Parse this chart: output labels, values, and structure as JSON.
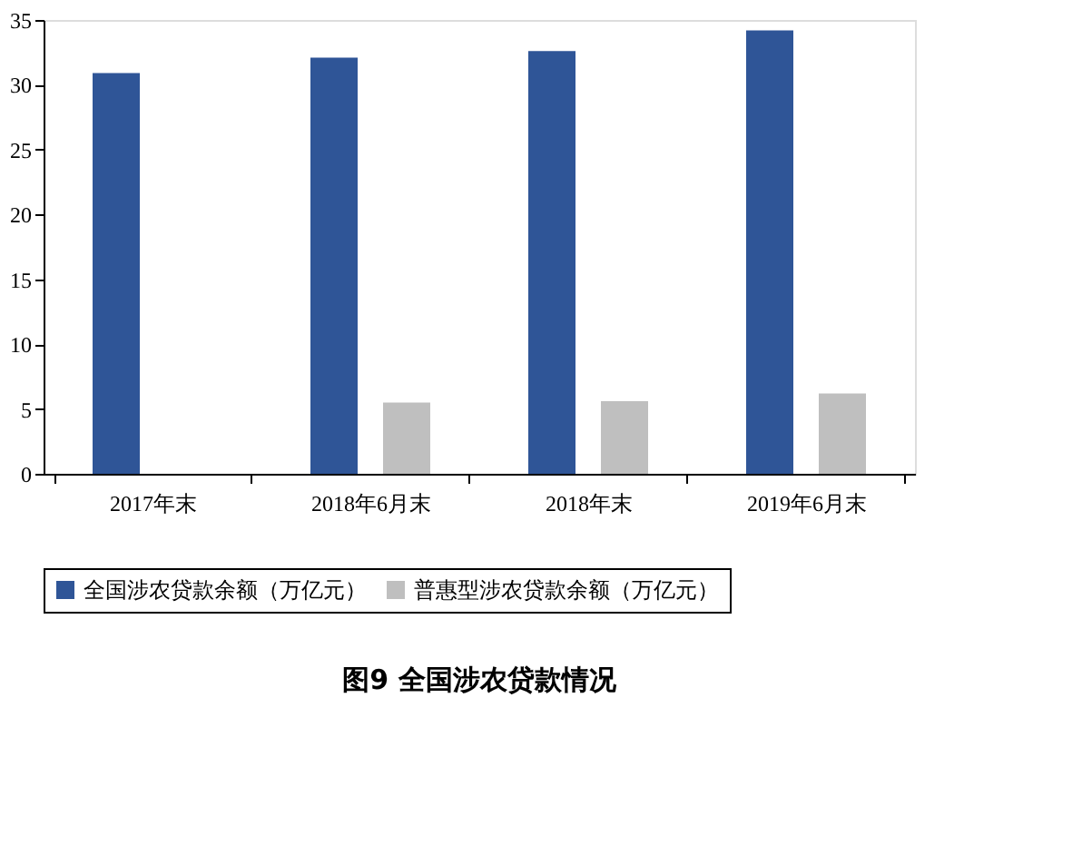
{
  "chart_data": {
    "type": "bar",
    "title": "图9 全国涉农贷款情况",
    "categories": [
      "2017年末",
      "2018年6月末",
      "2018年末",
      "2019年6月末"
    ],
    "series": [
      {
        "name": "全国涉农贷款余额（万亿元）",
        "color": "#2f5597",
        "values": [
          30.9,
          32.1,
          32.6,
          34.2
        ]
      },
      {
        "name": "普惠型涉农贷款余额（万亿元）",
        "color": "#bfbfbf",
        "values": [
          null,
          5.5,
          5.6,
          6.2
        ]
      }
    ],
    "ylim": [
      0,
      35
    ],
    "yticks": [
      0,
      5,
      10,
      15,
      20,
      25,
      30,
      35
    ],
    "grid": false,
    "legend": "bottom"
  }
}
